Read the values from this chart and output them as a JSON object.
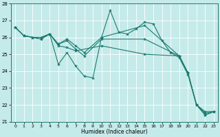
{
  "xlabel": "Humidex (Indice chaleur)",
  "xlim": [
    -0.5,
    23.5
  ],
  "ylim": [
    21,
    28
  ],
  "yticks": [
    21,
    22,
    23,
    24,
    25,
    26,
    27,
    28
  ],
  "xticks": [
    0,
    1,
    2,
    3,
    4,
    5,
    6,
    7,
    8,
    9,
    10,
    11,
    12,
    13,
    14,
    15,
    16,
    17,
    18,
    19,
    20,
    21,
    22,
    23
  ],
  "bg_color": "#c5eaea",
  "line_color": "#1a7a6e",
  "grid_color": "#ffffff",
  "lines": [
    {
      "x": [
        0,
        1,
        2,
        3,
        4,
        5,
        6,
        7,
        8,
        9,
        10,
        11,
        12,
        13,
        14,
        15,
        16,
        17,
        18,
        19,
        20,
        21,
        22,
        23
      ],
      "y": [
        26.6,
        26.1,
        26.0,
        26.0,
        26.2,
        24.4,
        25.1,
        24.3,
        23.7,
        23.6,
        26.0,
        27.6,
        26.3,
        26.2,
        26.5,
        26.9,
        26.8,
        25.8,
        25.1,
        24.8,
        23.8,
        22.0,
        21.4,
        21.6
      ]
    },
    {
      "x": [
        0,
        1,
        2,
        3,
        4,
        5,
        6,
        7,
        8,
        10,
        15,
        19,
        20,
        21,
        22,
        23
      ],
      "y": [
        26.6,
        26.1,
        26.0,
        26.0,
        26.2,
        25.6,
        25.9,
        25.5,
        25.1,
        26.0,
        26.7,
        24.9,
        23.9,
        22.0,
        21.6,
        21.6
      ]
    },
    {
      "x": [
        0,
        1,
        2,
        3,
        4,
        5,
        6,
        7,
        8,
        10,
        15,
        19,
        20,
        21,
        22,
        23
      ],
      "y": [
        26.6,
        26.1,
        26.0,
        25.9,
        26.2,
        25.6,
        25.8,
        25.3,
        24.9,
        25.9,
        25.9,
        24.9,
        23.9,
        22.0,
        21.5,
        21.6
      ]
    },
    {
      "x": [
        0,
        1,
        2,
        3,
        4,
        5,
        6,
        7,
        10,
        15,
        19,
        20,
        21,
        22,
        23
      ],
      "y": [
        26.6,
        26.1,
        26.0,
        25.9,
        26.2,
        25.5,
        25.4,
        25.2,
        25.5,
        25.0,
        24.9,
        23.9,
        22.0,
        21.4,
        21.6
      ]
    }
  ]
}
